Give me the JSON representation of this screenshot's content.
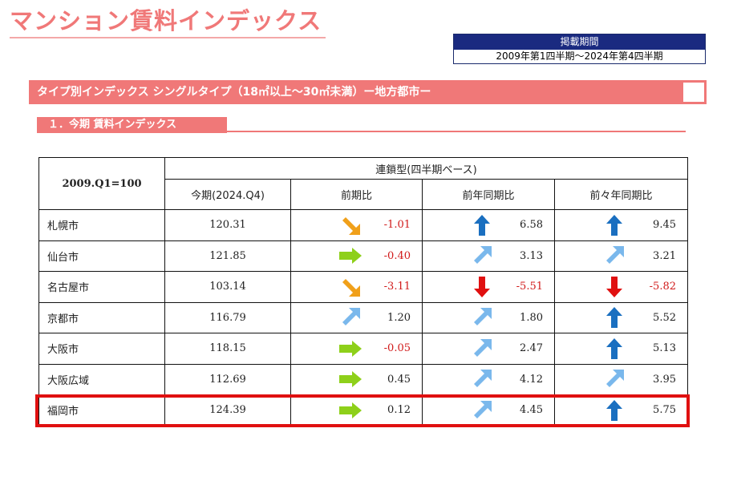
{
  "main_title": "マンション賃料インデックス",
  "period": {
    "label": "掲載期間",
    "value": "2009年第1四半期～2024年第4四半期"
  },
  "type_banner": "タイプ別インデックス シングルタイプ（18㎡以上～30㎡未満）ー地方都市ー",
  "section_title": "１．今期 賃料インデックス",
  "table": {
    "corner_label": "2009.Q1=100",
    "group_header": "連鎖型(四半期ベース)",
    "columns": [
      "今期(2024.Q4)",
      "前期比",
      "前年同期比",
      "前々年同期比"
    ],
    "rows": [
      {
        "city": "札幌市",
        "now": "120.31",
        "qoq": {
          "value": "-1.01",
          "arrow": "orange-down-right-arrow"
        },
        "yoy": {
          "value": "6.58",
          "arrow": "blue-up-arrow"
        },
        "yoy2": {
          "value": "9.45",
          "arrow": "blue-up-arrow"
        }
      },
      {
        "city": "仙台市",
        "now": "121.85",
        "qoq": {
          "value": "-0.40",
          "arrow": "green-right-arrow"
        },
        "yoy": {
          "value": "3.13",
          "arrow": "lightblue-up-right-arrow"
        },
        "yoy2": {
          "value": "3.21",
          "arrow": "lightblue-up-right-arrow"
        }
      },
      {
        "city": "名古屋市",
        "now": "103.14",
        "qoq": {
          "value": "-3.11",
          "arrow": "orange-down-right-arrow"
        },
        "yoy": {
          "value": "-5.51",
          "arrow": "red-down-arrow"
        },
        "yoy2": {
          "value": "-5.82",
          "arrow": "red-down-arrow"
        }
      },
      {
        "city": "京都市",
        "now": "116.79",
        "qoq": {
          "value": "1.20",
          "arrow": "lightblue-up-right-arrow"
        },
        "yoy": {
          "value": "1.80",
          "arrow": "lightblue-up-right-arrow"
        },
        "yoy2": {
          "value": "5.52",
          "arrow": "blue-up-arrow"
        }
      },
      {
        "city": "大阪市",
        "now": "118.15",
        "qoq": {
          "value": "-0.05",
          "arrow": "green-right-arrow"
        },
        "yoy": {
          "value": "2.47",
          "arrow": "lightblue-up-right-arrow"
        },
        "yoy2": {
          "value": "5.13",
          "arrow": "blue-up-arrow"
        }
      },
      {
        "city": "大阪広域",
        "now": "112.69",
        "qoq": {
          "value": "0.45",
          "arrow": "green-right-arrow"
        },
        "yoy": {
          "value": "4.12",
          "arrow": "lightblue-up-right-arrow"
        },
        "yoy2": {
          "value": "3.95",
          "arrow": "lightblue-up-right-arrow"
        }
      },
      {
        "city": "福岡市",
        "now": "124.39",
        "qoq": {
          "value": "0.12",
          "arrow": "green-right-arrow"
        },
        "yoy": {
          "value": "4.45",
          "arrow": "lightblue-up-right-arrow"
        },
        "yoy2": {
          "value": "5.75",
          "arrow": "blue-up-arrow"
        }
      }
    ],
    "highlighted_city": "福岡市"
  },
  "colors": {
    "accent_pink": "#f07878",
    "navy": "#1a2a80",
    "negative_red": "#d11a1a",
    "highlight_red": "#e01010",
    "arrow_blue": "#1a6fc0",
    "arrow_lightblue": "#7ab8ec",
    "arrow_green": "#8ed01a",
    "arrow_orange": "#f0a01a",
    "arrow_red": "#e01010"
  }
}
